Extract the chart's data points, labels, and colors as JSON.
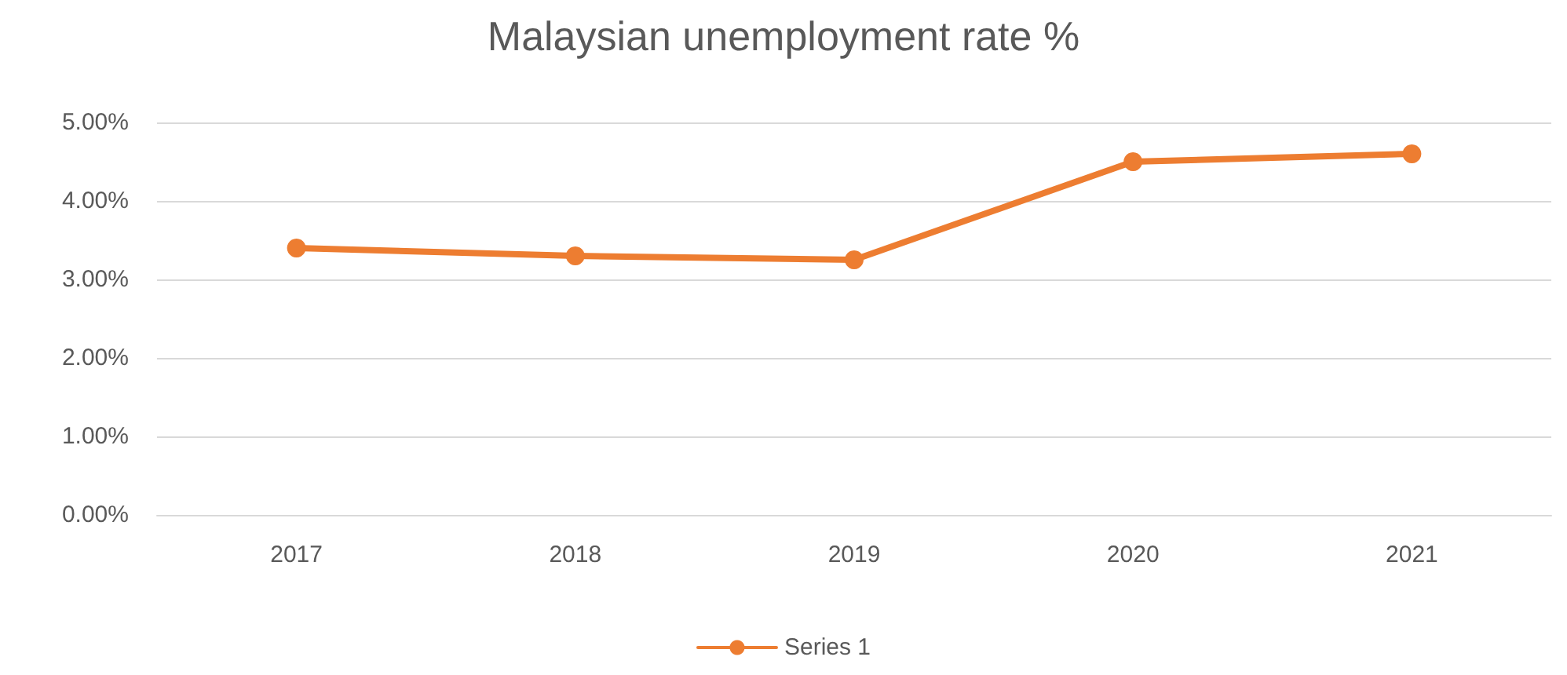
{
  "chart_data": {
    "type": "line",
    "title": "Malaysian unemployment rate %",
    "categories": [
      "2017",
      "2018",
      "2019",
      "2020",
      "2021"
    ],
    "series": [
      {
        "name": "Series 1",
        "color": "#ed7d31",
        "values": [
          3.4,
          3.3,
          3.25,
          4.5,
          4.6
        ]
      }
    ],
    "ylim": [
      0,
      5
    ],
    "yticks": [
      {
        "value": 0,
        "label": "0.00%"
      },
      {
        "value": 1,
        "label": "1.00%"
      },
      {
        "value": 2,
        "label": "2.00%"
      },
      {
        "value": 3,
        "label": "3.00%"
      },
      {
        "value": 4,
        "label": "4.00%"
      },
      {
        "value": 5,
        "label": "5.00%"
      }
    ],
    "grid": "y",
    "legend": "bottom",
    "marker": "circle",
    "line_style": "solid"
  }
}
